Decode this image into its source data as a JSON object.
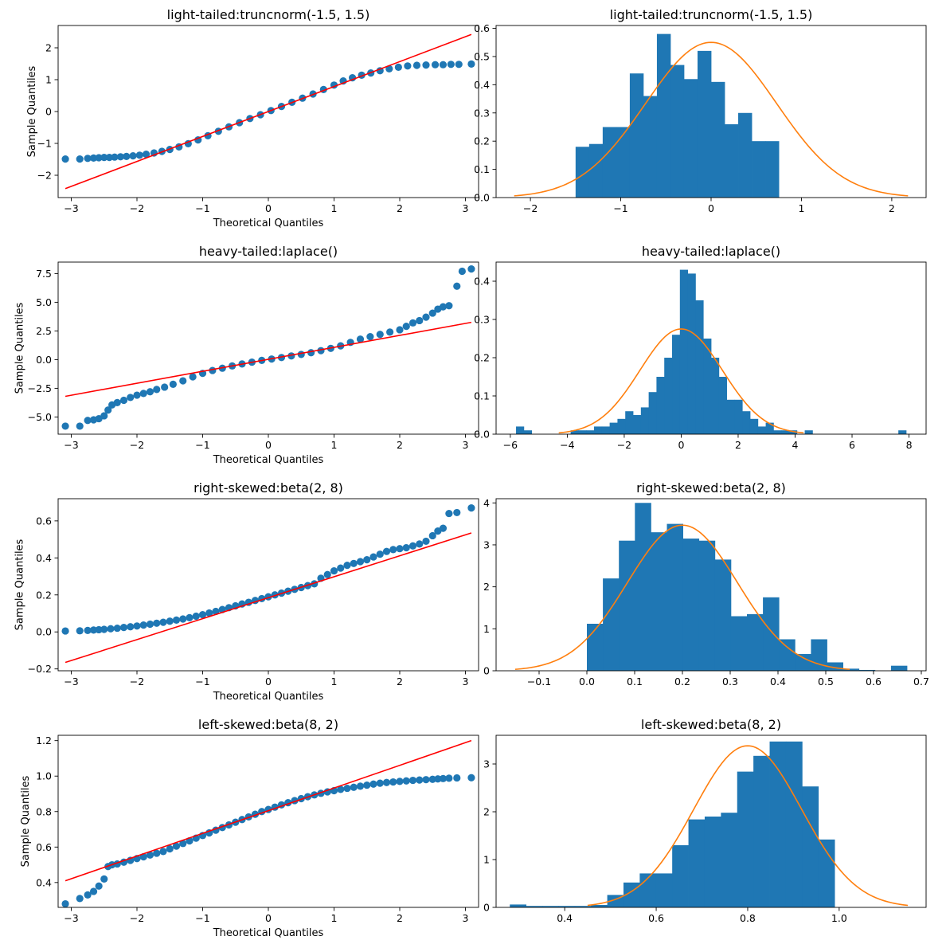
{
  "chart_data": [
    {
      "type": "scatter",
      "panel": "qq",
      "title": "light-tailed:truncnorm(-1.5, 1.5)",
      "xlabel": "Theoretical Quantiles",
      "ylabel": "Sample Quantiles",
      "xlim": [
        -3.2,
        3.2
      ],
      "ylim": [
        -2.7,
        2.7
      ],
      "xticks": [
        -3,
        -2,
        -1,
        0,
        1,
        2,
        3
      ],
      "yticks": [
        -2,
        -1,
        0,
        1,
        2
      ],
      "point_color": "#1f77b4",
      "line_color": "#ff0000",
      "reference_line": [
        [
          -3.09,
          -2.42
        ],
        [
          3.09,
          2.42
        ]
      ],
      "points": [
        [
          -3.09,
          -1.49
        ],
        [
          -2.87,
          -1.49
        ],
        [
          -2.75,
          -1.47
        ],
        [
          -2.66,
          -1.46
        ],
        [
          -2.58,
          -1.45
        ],
        [
          -2.5,
          -1.44
        ],
        [
          -2.42,
          -1.44
        ],
        [
          -2.34,
          -1.43
        ],
        [
          -2.25,
          -1.42
        ],
        [
          -2.16,
          -1.41
        ],
        [
          -2.06,
          -1.39
        ],
        [
          -1.96,
          -1.37
        ],
        [
          -1.86,
          -1.34
        ],
        [
          -1.74,
          -1.3
        ],
        [
          -1.62,
          -1.25
        ],
        [
          -1.5,
          -1.19
        ],
        [
          -1.36,
          -1.11
        ],
        [
          -1.22,
          -1.01
        ],
        [
          -1.07,
          -0.89
        ],
        [
          -0.92,
          -0.76
        ],
        [
          -0.76,
          -0.62
        ],
        [
          -0.6,
          -0.48
        ],
        [
          -0.44,
          -0.35
        ],
        [
          -0.28,
          -0.22
        ],
        [
          -0.12,
          -0.1
        ],
        [
          0.04,
          0.03
        ],
        [
          0.2,
          0.16
        ],
        [
          0.36,
          0.29
        ],
        [
          0.52,
          0.42
        ],
        [
          0.68,
          0.55
        ],
        [
          0.84,
          0.69
        ],
        [
          1.0,
          0.83
        ],
        [
          1.14,
          0.96
        ],
        [
          1.28,
          1.06
        ],
        [
          1.42,
          1.14
        ],
        [
          1.56,
          1.21
        ],
        [
          1.7,
          1.28
        ],
        [
          1.84,
          1.34
        ],
        [
          1.98,
          1.39
        ],
        [
          2.12,
          1.43
        ],
        [
          2.26,
          1.45
        ],
        [
          2.4,
          1.46
        ],
        [
          2.54,
          1.47
        ],
        [
          2.66,
          1.47
        ],
        [
          2.78,
          1.48
        ],
        [
          2.9,
          1.48
        ],
        [
          3.09,
          1.49
        ]
      ]
    },
    {
      "type": "bar",
      "panel": "histogram",
      "title": "light-tailed:truncnorm(-1.5, 1.5)",
      "xlim": [
        -2.38,
        2.38
      ],
      "ylim": [
        0,
        0.61
      ],
      "xticks": [
        -2,
        -1,
        0,
        1,
        2
      ],
      "yticks": [
        0.0,
        0.1,
        0.2,
        0.3,
        0.4,
        0.5,
        0.6
      ],
      "bar_color": "#1f77b4",
      "curve_color": "#ff7f0e",
      "bin_start": -1.5,
      "bin_width": 0.15,
      "values": [
        0.18,
        0.19,
        0.25,
        0.25,
        0.44,
        0.36,
        0.58,
        0.47,
        0.42,
        0.52,
        0.41,
        0.26,
        0.3,
        0.2,
        0.2
      ],
      "density_curve": {
        "kind": "normal",
        "mean": 0.0,
        "sd": 0.725,
        "range": [
          -2.18,
          2.18
        ]
      }
    },
    {
      "type": "scatter",
      "panel": "qq",
      "title": "heavy-tailed:laplace()",
      "xlabel": "Theoretical Quantiles",
      "ylabel": "Sample Quantiles",
      "xlim": [
        -3.2,
        3.2
      ],
      "ylim": [
        -6.5,
        8.5
      ],
      "xticks": [
        -3,
        -2,
        -1,
        0,
        1,
        2,
        3
      ],
      "yticks": [
        -5.0,
        -2.5,
        0.0,
        2.5,
        5.0,
        7.5
      ],
      "point_color": "#1f77b4",
      "line_color": "#ff0000",
      "reference_line": [
        [
          -3.09,
          -3.2
        ],
        [
          3.09,
          3.25
        ]
      ],
      "points": [
        [
          -3.09,
          -5.8
        ],
        [
          -2.87,
          -5.8
        ],
        [
          -2.75,
          -5.3
        ],
        [
          -2.66,
          -5.25
        ],
        [
          -2.58,
          -5.15
        ],
        [
          -2.5,
          -4.9
        ],
        [
          -2.44,
          -4.4
        ],
        [
          -2.38,
          -3.95
        ],
        [
          -2.3,
          -3.75
        ],
        [
          -2.2,
          -3.55
        ],
        [
          -2.1,
          -3.3
        ],
        [
          -2.0,
          -3.1
        ],
        [
          -1.9,
          -2.95
        ],
        [
          -1.8,
          -2.8
        ],
        [
          -1.7,
          -2.6
        ],
        [
          -1.58,
          -2.4
        ],
        [
          -1.45,
          -2.15
        ],
        [
          -1.3,
          -1.85
        ],
        [
          -1.15,
          -1.5
        ],
        [
          -1.0,
          -1.2
        ],
        [
          -0.85,
          -0.95
        ],
        [
          -0.7,
          -0.75
        ],
        [
          -0.55,
          -0.55
        ],
        [
          -0.4,
          -0.38
        ],
        [
          -0.25,
          -0.22
        ],
        [
          -0.1,
          -0.07
        ],
        [
          0.05,
          0.05
        ],
        [
          0.2,
          0.18
        ],
        [
          0.35,
          0.32
        ],
        [
          0.5,
          0.45
        ],
        [
          0.65,
          0.6
        ],
        [
          0.8,
          0.78
        ],
        [
          0.95,
          0.98
        ],
        [
          1.1,
          1.2
        ],
        [
          1.25,
          1.5
        ],
        [
          1.4,
          1.78
        ],
        [
          1.55,
          2.0
        ],
        [
          1.7,
          2.2
        ],
        [
          1.85,
          2.4
        ],
        [
          2.0,
          2.6
        ],
        [
          2.1,
          2.9
        ],
        [
          2.2,
          3.2
        ],
        [
          2.3,
          3.4
        ],
        [
          2.4,
          3.7
        ],
        [
          2.5,
          4.05
        ],
        [
          2.58,
          4.4
        ],
        [
          2.66,
          4.6
        ],
        [
          2.75,
          4.7
        ],
        [
          2.87,
          6.4
        ],
        [
          2.95,
          7.7
        ],
        [
          3.09,
          7.9
        ]
      ]
    },
    {
      "type": "bar",
      "panel": "histogram",
      "title": "heavy-tailed:laplace()",
      "xlim": [
        -6.5,
        8.6
      ],
      "ylim": [
        0,
        0.45
      ],
      "xticks": [
        -6,
        -4,
        -2,
        0,
        2,
        4,
        6,
        8
      ],
      "yticks": [
        0.0,
        0.1,
        0.2,
        0.3,
        0.4
      ],
      "bar_color": "#1f77b4",
      "curve_color": "#ff7f0e",
      "bin_start": -5.8,
      "bin_width": 0.274,
      "values": [
        0.02,
        0.01,
        0,
        0,
        0,
        0,
        0,
        0.01,
        0.01,
        0.01,
        0.02,
        0.02,
        0.03,
        0.04,
        0.06,
        0.05,
        0.07,
        0.11,
        0.15,
        0.2,
        0.26,
        0.43,
        0.42,
        0.35,
        0.25,
        0.2,
        0.15,
        0.09,
        0.09,
        0.06,
        0.04,
        0.02,
        0.03,
        0.01,
        0.01,
        0.01,
        0,
        0.01,
        0,
        0,
        0,
        0,
        0,
        0,
        0,
        0,
        0,
        0,
        0,
        0.01
      ],
      "density_curve": {
        "kind": "normal",
        "mean": 0.0,
        "sd": 1.45,
        "range": [
          -4.3,
          4.3
        ]
      }
    },
    {
      "type": "scatter",
      "panel": "qq",
      "title": "right-skewed:beta(2, 8)",
      "xlabel": "Theoretical Quantiles",
      "ylabel": "Sample Quantiles",
      "xlim": [
        -3.2,
        3.2
      ],
      "ylim": [
        -0.21,
        0.72
      ],
      "xticks": [
        -3,
        -2,
        -1,
        0,
        1,
        2,
        3
      ],
      "yticks": [
        -0.2,
        0.0,
        0.2,
        0.4,
        0.6
      ],
      "point_color": "#1f77b4",
      "line_color": "#ff0000",
      "reference_line": [
        [
          -3.09,
          -0.165
        ],
        [
          3.09,
          0.535
        ]
      ],
      "points": [
        [
          -3.09,
          0.005
        ],
        [
          -2.87,
          0.006
        ],
        [
          -2.75,
          0.008
        ],
        [
          -2.66,
          0.01
        ],
        [
          -2.58,
          0.012
        ],
        [
          -2.5,
          0.014
        ],
        [
          -2.4,
          0.017
        ],
        [
          -2.3,
          0.02
        ],
        [
          -2.2,
          0.024
        ],
        [
          -2.1,
          0.028
        ],
        [
          -2.0,
          0.032
        ],
        [
          -1.9,
          0.037
        ],
        [
          -1.8,
          0.042
        ],
        [
          -1.7,
          0.047
        ],
        [
          -1.6,
          0.052
        ],
        [
          -1.5,
          0.058
        ],
        [
          -1.4,
          0.064
        ],
        [
          -1.3,
          0.07
        ],
        [
          -1.2,
          0.077
        ],
        [
          -1.1,
          0.085
        ],
        [
          -1.0,
          0.093
        ],
        [
          -0.9,
          0.102
        ],
        [
          -0.8,
          0.111
        ],
        [
          -0.7,
          0.121
        ],
        [
          -0.6,
          0.131
        ],
        [
          -0.5,
          0.141
        ],
        [
          -0.4,
          0.151
        ],
        [
          -0.3,
          0.16
        ],
        [
          -0.2,
          0.17
        ],
        [
          -0.1,
          0.18
        ],
        [
          0.0,
          0.19
        ],
        [
          0.1,
          0.2
        ],
        [
          0.2,
          0.21
        ],
        [
          0.3,
          0.22
        ],
        [
          0.4,
          0.23
        ],
        [
          0.5,
          0.24
        ],
        [
          0.6,
          0.25
        ],
        [
          0.7,
          0.26
        ],
        [
          0.8,
          0.29
        ],
        [
          0.9,
          0.31
        ],
        [
          1.0,
          0.33
        ],
        [
          1.1,
          0.345
        ],
        [
          1.2,
          0.36
        ],
        [
          1.3,
          0.37
        ],
        [
          1.4,
          0.38
        ],
        [
          1.5,
          0.39
        ],
        [
          1.6,
          0.405
        ],
        [
          1.7,
          0.42
        ],
        [
          1.8,
          0.435
        ],
        [
          1.9,
          0.445
        ],
        [
          2.0,
          0.45
        ],
        [
          2.1,
          0.455
        ],
        [
          2.2,
          0.465
        ],
        [
          2.3,
          0.475
        ],
        [
          2.4,
          0.49
        ],
        [
          2.5,
          0.52
        ],
        [
          2.58,
          0.545
        ],
        [
          2.66,
          0.56
        ],
        [
          2.75,
          0.64
        ],
        [
          2.87,
          0.645
        ],
        [
          3.09,
          0.67
        ]
      ]
    },
    {
      "type": "bar",
      "panel": "histogram",
      "title": "right-skewed:beta(2, 8)",
      "xlim": [
        -0.19,
        0.71
      ],
      "ylim": [
        0,
        4.1
      ],
      "xticks": [
        -0.1,
        0.0,
        0.1,
        0.2,
        0.3,
        0.4,
        0.5,
        0.6,
        0.7
      ],
      "yticks": [
        0,
        1,
        2,
        3,
        4
      ],
      "bar_color": "#1f77b4",
      "curve_color": "#ff7f0e",
      "bin_start": 0.0,
      "bin_width": 0.0335,
      "values": [
        1.12,
        2.2,
        3.1,
        4.0,
        3.3,
        3.5,
        3.15,
        3.1,
        2.65,
        1.3,
        1.35,
        1.75,
        0.75,
        0.4,
        0.75,
        0.2,
        0.05,
        0.02,
        0,
        0.12
      ],
      "density_curve": {
        "kind": "normal",
        "mean": 0.2,
        "sd": 0.115,
        "range": [
          -0.15,
          0.55
        ]
      }
    },
    {
      "type": "scatter",
      "panel": "qq",
      "title": "left-skewed:beta(8, 2)",
      "xlabel": "Theoretical Quantiles",
      "ylabel": "Sample Quantiles",
      "xlim": [
        -3.2,
        3.2
      ],
      "ylim": [
        0.26,
        1.23
      ],
      "xticks": [
        -3,
        -2,
        -1,
        0,
        1,
        2,
        3
      ],
      "yticks": [
        0.4,
        0.6,
        0.8,
        1.0,
        1.2
      ],
      "point_color": "#1f77b4",
      "line_color": "#ff0000",
      "reference_line": [
        [
          -3.09,
          0.41
        ],
        [
          3.09,
          1.2
        ]
      ],
      "points": [
        [
          -3.09,
          0.28
        ],
        [
          -2.87,
          0.31
        ],
        [
          -2.75,
          0.33
        ],
        [
          -2.66,
          0.35
        ],
        [
          -2.58,
          0.38
        ],
        [
          -2.5,
          0.42
        ],
        [
          -2.44,
          0.49
        ],
        [
          -2.38,
          0.5
        ],
        [
          -2.3,
          0.505
        ],
        [
          -2.2,
          0.515
        ],
        [
          -2.1,
          0.525
        ],
        [
          -2.0,
          0.535
        ],
        [
          -1.9,
          0.545
        ],
        [
          -1.8,
          0.555
        ],
        [
          -1.7,
          0.565
        ],
        [
          -1.6,
          0.575
        ],
        [
          -1.5,
          0.59
        ],
        [
          -1.4,
          0.605
        ],
        [
          -1.3,
          0.62
        ],
        [
          -1.2,
          0.635
        ],
        [
          -1.1,
          0.65
        ],
        [
          -1.0,
          0.665
        ],
        [
          -0.9,
          0.68
        ],
        [
          -0.8,
          0.695
        ],
        [
          -0.7,
          0.71
        ],
        [
          -0.6,
          0.725
        ],
        [
          -0.5,
          0.74
        ],
        [
          -0.4,
          0.755
        ],
        [
          -0.3,
          0.77
        ],
        [
          -0.2,
          0.785
        ],
        [
          -0.1,
          0.8
        ],
        [
          0.0,
          0.812
        ],
        [
          0.1,
          0.825
        ],
        [
          0.2,
          0.838
        ],
        [
          0.3,
          0.85
        ],
        [
          0.4,
          0.862
        ],
        [
          0.5,
          0.873
        ],
        [
          0.6,
          0.884
        ],
        [
          0.7,
          0.894
        ],
        [
          0.8,
          0.903
        ],
        [
          0.9,
          0.911
        ],
        [
          1.0,
          0.918
        ],
        [
          1.1,
          0.925
        ],
        [
          1.2,
          0.931
        ],
        [
          1.3,
          0.937
        ],
        [
          1.4,
          0.943
        ],
        [
          1.5,
          0.949
        ],
        [
          1.6,
          0.955
        ],
        [
          1.7,
          0.96
        ],
        [
          1.8,
          0.964
        ],
        [
          1.9,
          0.967
        ],
        [
          2.0,
          0.97
        ],
        [
          2.1,
          0.973
        ],
        [
          2.2,
          0.976
        ],
        [
          2.3,
          0.978
        ],
        [
          2.4,
          0.98
        ],
        [
          2.5,
          0.982
        ],
        [
          2.58,
          0.984
        ],
        [
          2.66,
          0.986
        ],
        [
          2.75,
          0.988
        ],
        [
          2.87,
          0.99
        ],
        [
          3.09,
          0.991
        ]
      ]
    },
    {
      "type": "bar",
      "panel": "histogram",
      "title": "left-skewed:beta(8, 2)",
      "xlim": [
        0.25,
        1.19
      ],
      "ylim": [
        0,
        3.6
      ],
      "xticks": [
        0.4,
        0.6,
        0.8,
        1.0
      ],
      "yticks": [
        0,
        1,
        2,
        3
      ],
      "bar_color": "#1f77b4",
      "curve_color": "#ff7f0e",
      "bin_start": 0.28,
      "bin_width": 0.0355,
      "values": [
        0.06,
        0.03,
        0.03,
        0.03,
        0.03,
        0.05,
        0.26,
        0.52,
        0.71,
        0.71,
        1.3,
        1.84,
        1.9,
        1.98,
        2.84,
        3.17,
        3.47,
        3.47,
        2.53,
        1.42
      ],
      "density_curve": {
        "kind": "normal",
        "mean": 0.8,
        "sd": 0.118,
        "range": [
          0.45,
          1.15
        ]
      }
    }
  ]
}
